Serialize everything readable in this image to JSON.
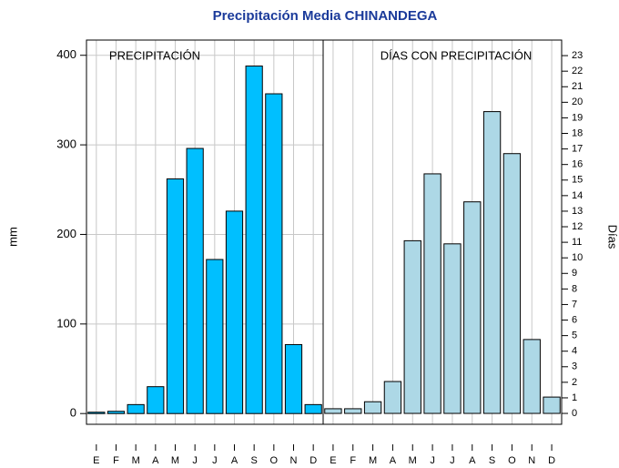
{
  "chart_data": [
    {
      "type": "bar",
      "title": "Precipitación Media CHINANDEGA",
      "annotation": "PRECIPITACIÓN",
      "ylabel": "mm",
      "categories": [
        "E",
        "F",
        "M",
        "A",
        "M",
        "J",
        "J",
        "A",
        "S",
        "O",
        "N",
        "D"
      ],
      "values": [
        1.5,
        2.5,
        10,
        30,
        262,
        296,
        172,
        226,
        388,
        357,
        77,
        10
      ],
      "color": "#00bfff",
      "ylim": [
        -12,
        417
      ],
      "yticks": [
        0,
        100,
        200,
        300,
        400
      ],
      "grid": true,
      "axis_side": "left"
    },
    {
      "type": "bar",
      "annotation": "DÍAS CON PRECIPITACIÓN",
      "ylabel": "Días",
      "categories": [
        "E",
        "F",
        "M",
        "A",
        "M",
        "J",
        "J",
        "A",
        "S",
        "O",
        "N",
        "D"
      ],
      "values": [
        0.3,
        0.3,
        0.75,
        2.05,
        11.1,
        15.4,
        10.9,
        13.6,
        19.4,
        16.7,
        4.75,
        1.05
      ],
      "color": "#add8e6",
      "ylim": [
        -0.7,
        24
      ],
      "yticks": [
        0,
        1,
        2,
        3,
        4,
        5,
        6,
        7,
        8,
        9,
        10,
        11,
        12,
        13,
        14,
        15,
        16,
        17,
        18,
        19,
        20,
        21,
        22,
        23
      ],
      "grid": false,
      "axis_side": "right"
    }
  ]
}
